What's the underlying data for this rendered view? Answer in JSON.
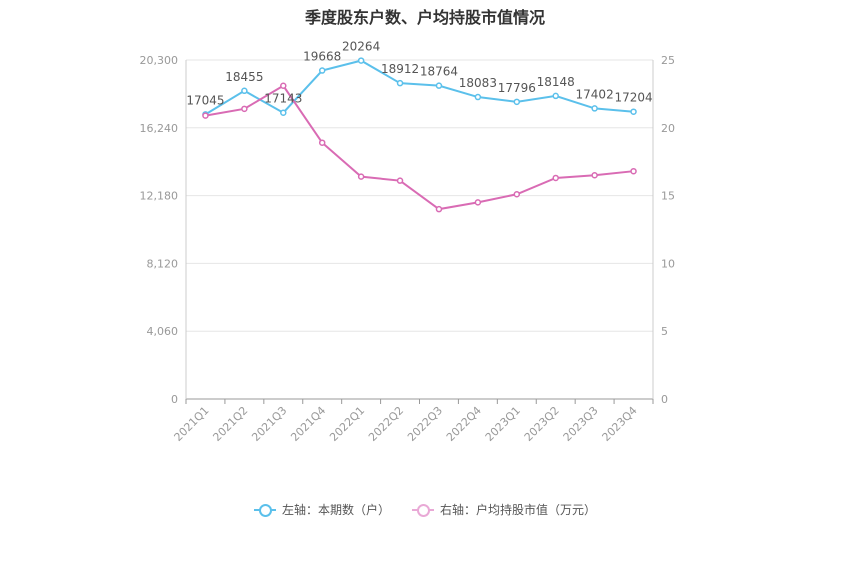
{
  "chart_data": {
    "type": "line",
    "title": "季度股东户数、户均持股市值情况",
    "categories": [
      "2021Q1",
      "2021Q2",
      "2021Q3",
      "2021Q4",
      "2022Q1",
      "2022Q2",
      "2022Q3",
      "2022Q4",
      "2023Q1",
      "2023Q2",
      "2023Q3",
      "2023Q4"
    ],
    "left_axis": {
      "ticks": [
        "0",
        "4,060",
        "8,120",
        "12,180",
        "16,240",
        "20,300"
      ],
      "ylim": [
        0,
        20300
      ]
    },
    "right_axis": {
      "ticks": [
        "0",
        "5",
        "10",
        "15",
        "20",
        "25"
      ],
      "ylim": [
        0,
        25
      ]
    },
    "grid": true,
    "legend_position": "bottom",
    "series": [
      {
        "name": "左轴：本期数（户）",
        "axis": "left",
        "color": "#5bc0eb",
        "values": [
          17045,
          18455,
          17143,
          19668,
          20264,
          18912,
          18764,
          18083,
          17796,
          18148,
          17402,
          17204
        ],
        "labels": [
          "17045",
          "18455",
          "17143",
          "19668",
          "20264",
          "18912",
          "18764",
          "18083",
          "17796",
          "18148",
          "17402",
          "17204"
        ]
      },
      {
        "name": "右轴：户均持股市值（万元）",
        "axis": "right",
        "color": "#d96bb4",
        "values": [
          20.9,
          21.4,
          23.1,
          18.9,
          16.4,
          16.1,
          14.0,
          14.5,
          15.1,
          16.3,
          16.5,
          16.8
        ]
      }
    ]
  }
}
